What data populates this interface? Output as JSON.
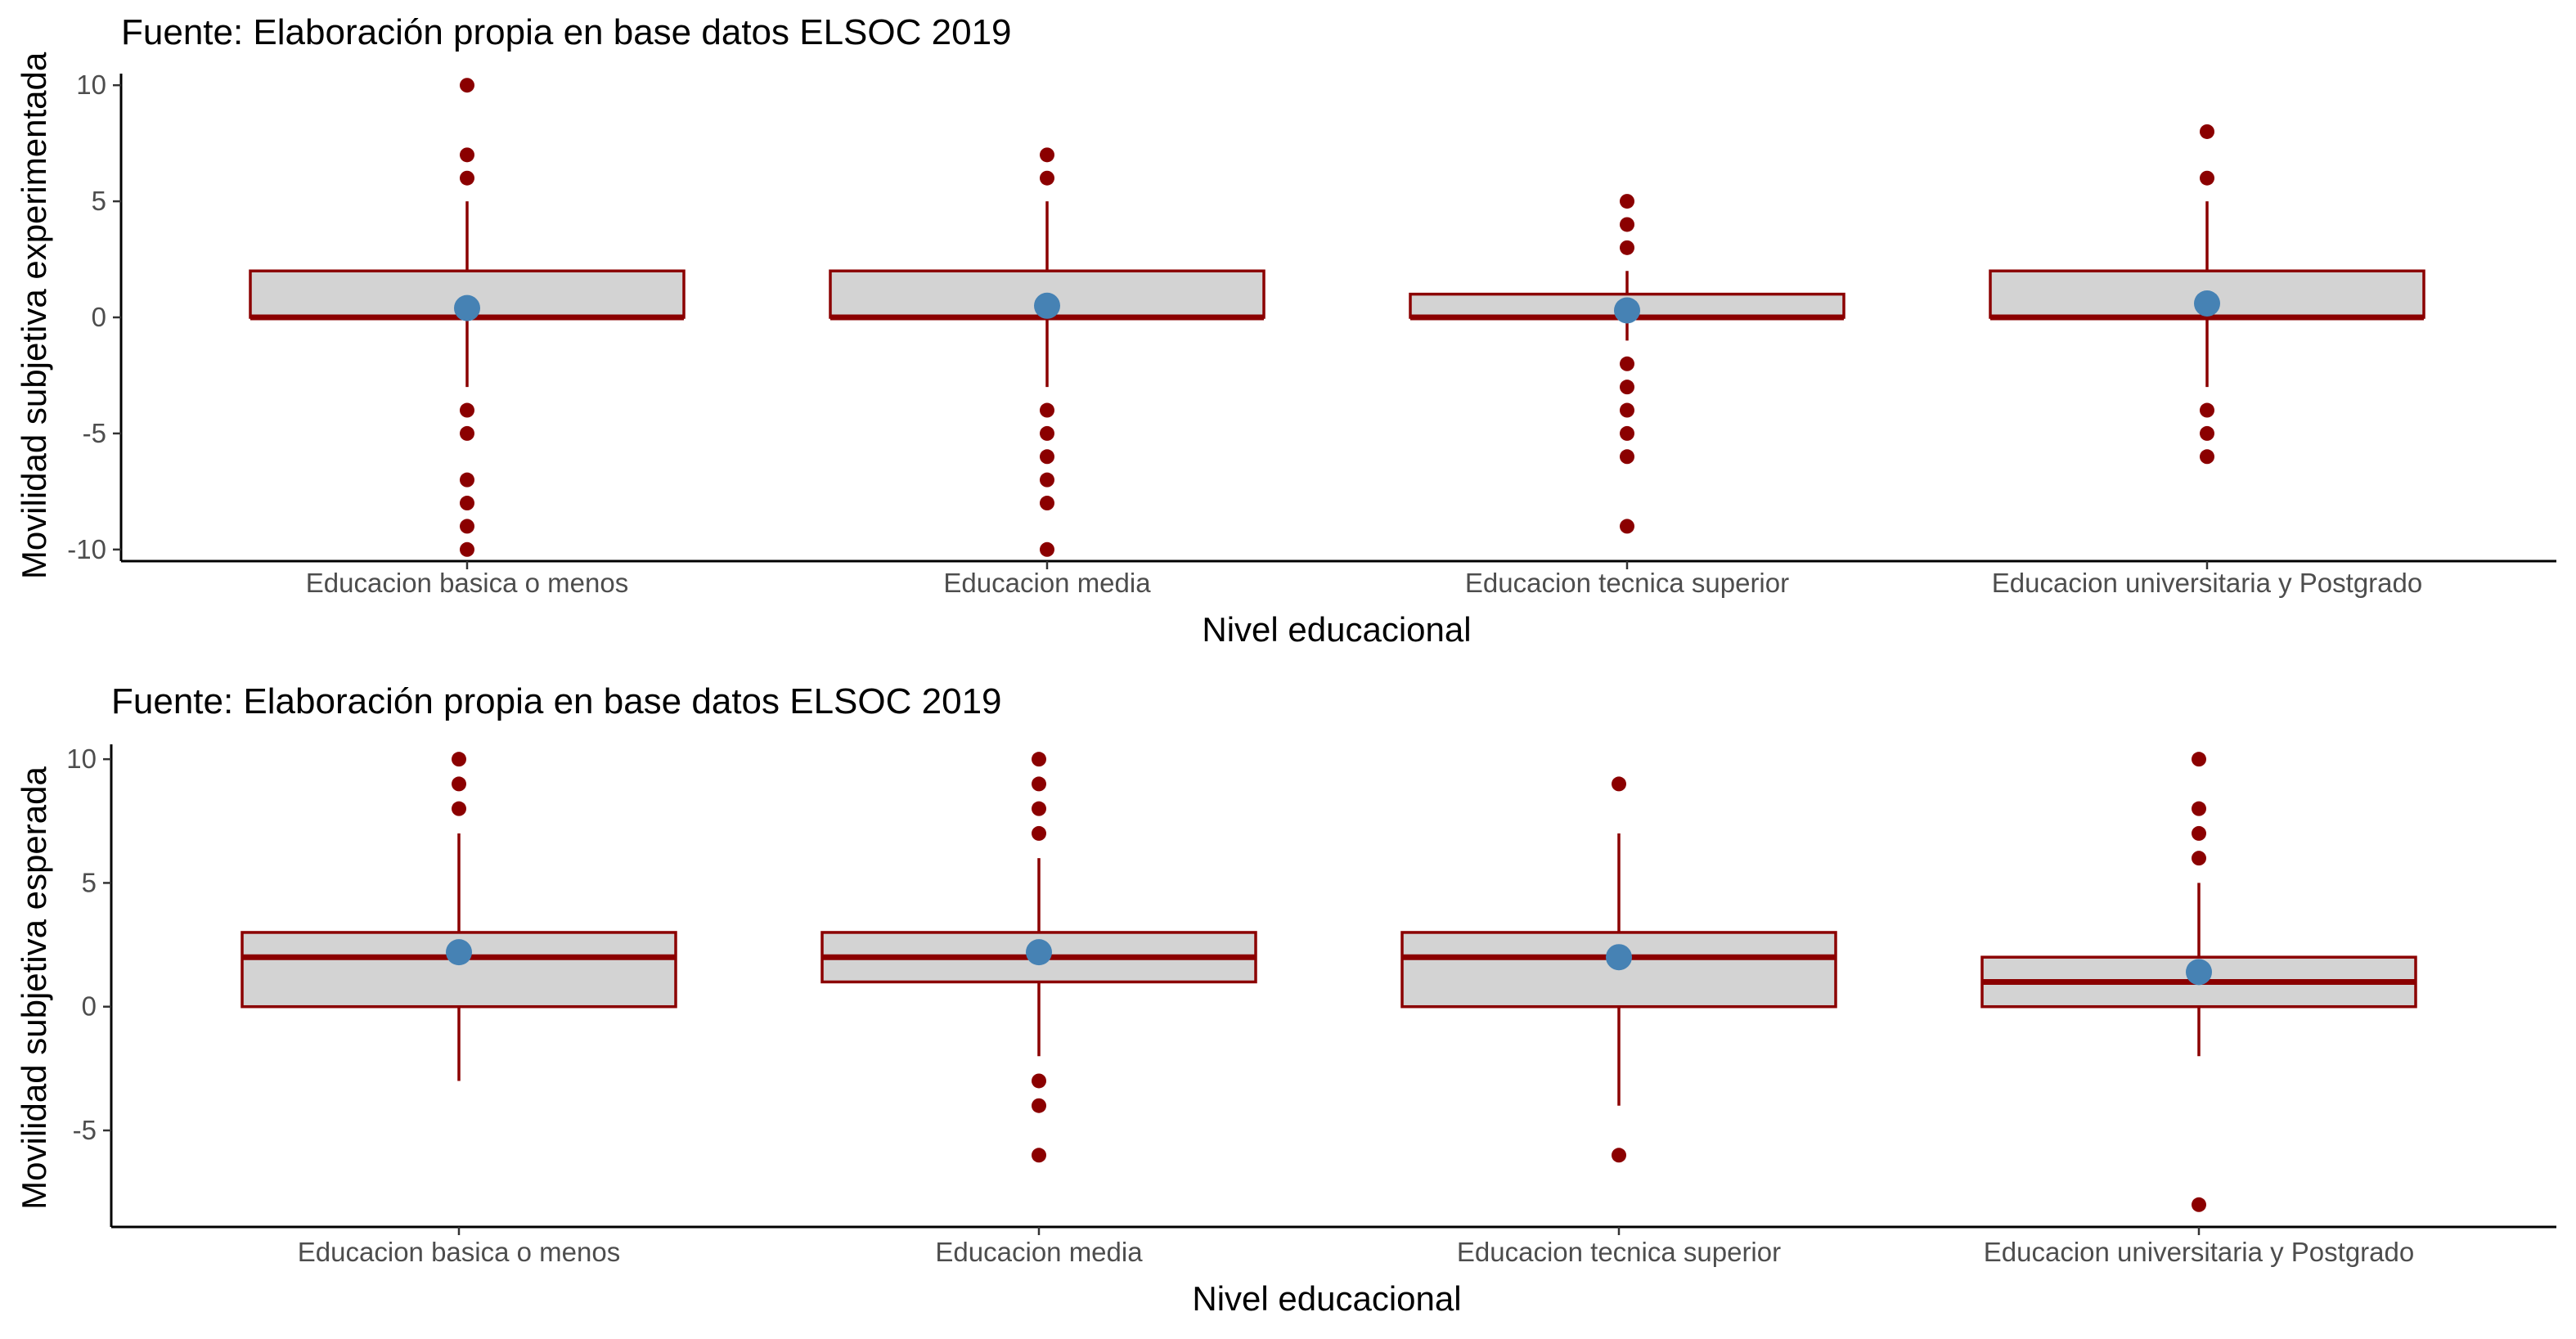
{
  "colors": {
    "box_fill": "#d3d3d3",
    "box_line": "#8b0000",
    "outlier": "#8b0000",
    "mean_point": "#4682b4",
    "axis": "#000000",
    "tick_text": "#4d4d4d"
  },
  "chart_data": [
    {
      "type": "box",
      "title": "Fuente: Elaboración propia en base datos ELSOC 2019",
      "xlabel": "Nivel educacional",
      "ylabel": "Movilidad subjetiva experimentada",
      "ylim": [
        -10.5,
        10.5
      ],
      "yticks": [
        10,
        5,
        0,
        -5,
        -10
      ],
      "ytick_labels": [
        "10",
        "5",
        "0",
        "-5",
        "-10"
      ],
      "grid": false,
      "categories": [
        "Educacion basica o menos",
        "Educacion media",
        "Educacion tecnica superior",
        "Educacion universitaria y Postgrado"
      ],
      "boxes": [
        {
          "q1": 0,
          "median": 0,
          "q3": 2,
          "whisker_low": -3,
          "whisker_high": 5,
          "mean": 0.4,
          "outliers": [
            10,
            7,
            6,
            -4,
            -5,
            -7,
            -8,
            -9,
            -10
          ]
        },
        {
          "q1": 0,
          "median": 0,
          "q3": 2,
          "whisker_low": -3,
          "whisker_high": 5,
          "mean": 0.5,
          "outliers": [
            7,
            6,
            -4,
            -5,
            -6,
            -7,
            -8,
            -10
          ]
        },
        {
          "q1": 0,
          "median": 0,
          "q3": 1,
          "whisker_low": -1,
          "whisker_high": 2,
          "mean": 0.3,
          "outliers": [
            5,
            4,
            3,
            -2,
            -3,
            -4,
            -5,
            -6,
            -9
          ]
        },
        {
          "q1": 0,
          "median": 0,
          "q3": 2,
          "whisker_low": -3,
          "whisker_high": 5,
          "mean": 0.6,
          "outliers": [
            8,
            6,
            -4,
            -5,
            -6
          ]
        }
      ]
    },
    {
      "type": "box",
      "title": "Fuente: Elaboración propia en base datos ELSOC 2019",
      "xlabel": "Nivel educacional",
      "ylabel": "Movilidad subjetiva esperada",
      "ylim": [
        -8.9,
        10.6
      ],
      "yticks": [
        10,
        5,
        0,
        -5
      ],
      "ytick_labels": [
        "10",
        "5",
        "0",
        "-5"
      ],
      "grid": false,
      "categories": [
        "Educacion basica o menos",
        "Educacion media",
        "Educacion tecnica superior",
        "Educacion universitaria y Postgrado"
      ],
      "boxes": [
        {
          "q1": 0,
          "median": 2,
          "q3": 3,
          "whisker_low": -3,
          "whisker_high": 7,
          "mean": 2.2,
          "outliers": [
            10,
            9,
            8
          ]
        },
        {
          "q1": 1,
          "median": 2,
          "q3": 3,
          "whisker_low": -2,
          "whisker_high": 6,
          "mean": 2.2,
          "outliers": [
            10,
            9,
            8,
            7,
            -3,
            -4,
            -6
          ]
        },
        {
          "q1": 0,
          "median": 2,
          "q3": 3,
          "whisker_low": -4,
          "whisker_high": 7,
          "mean": 2.0,
          "outliers": [
            9,
            -6
          ]
        },
        {
          "q1": 0,
          "median": 1,
          "q3": 2,
          "whisker_low": -2,
          "whisker_high": 5,
          "mean": 1.4,
          "outliers": [
            10,
            8,
            7,
            6,
            -8
          ]
        }
      ]
    }
  ]
}
